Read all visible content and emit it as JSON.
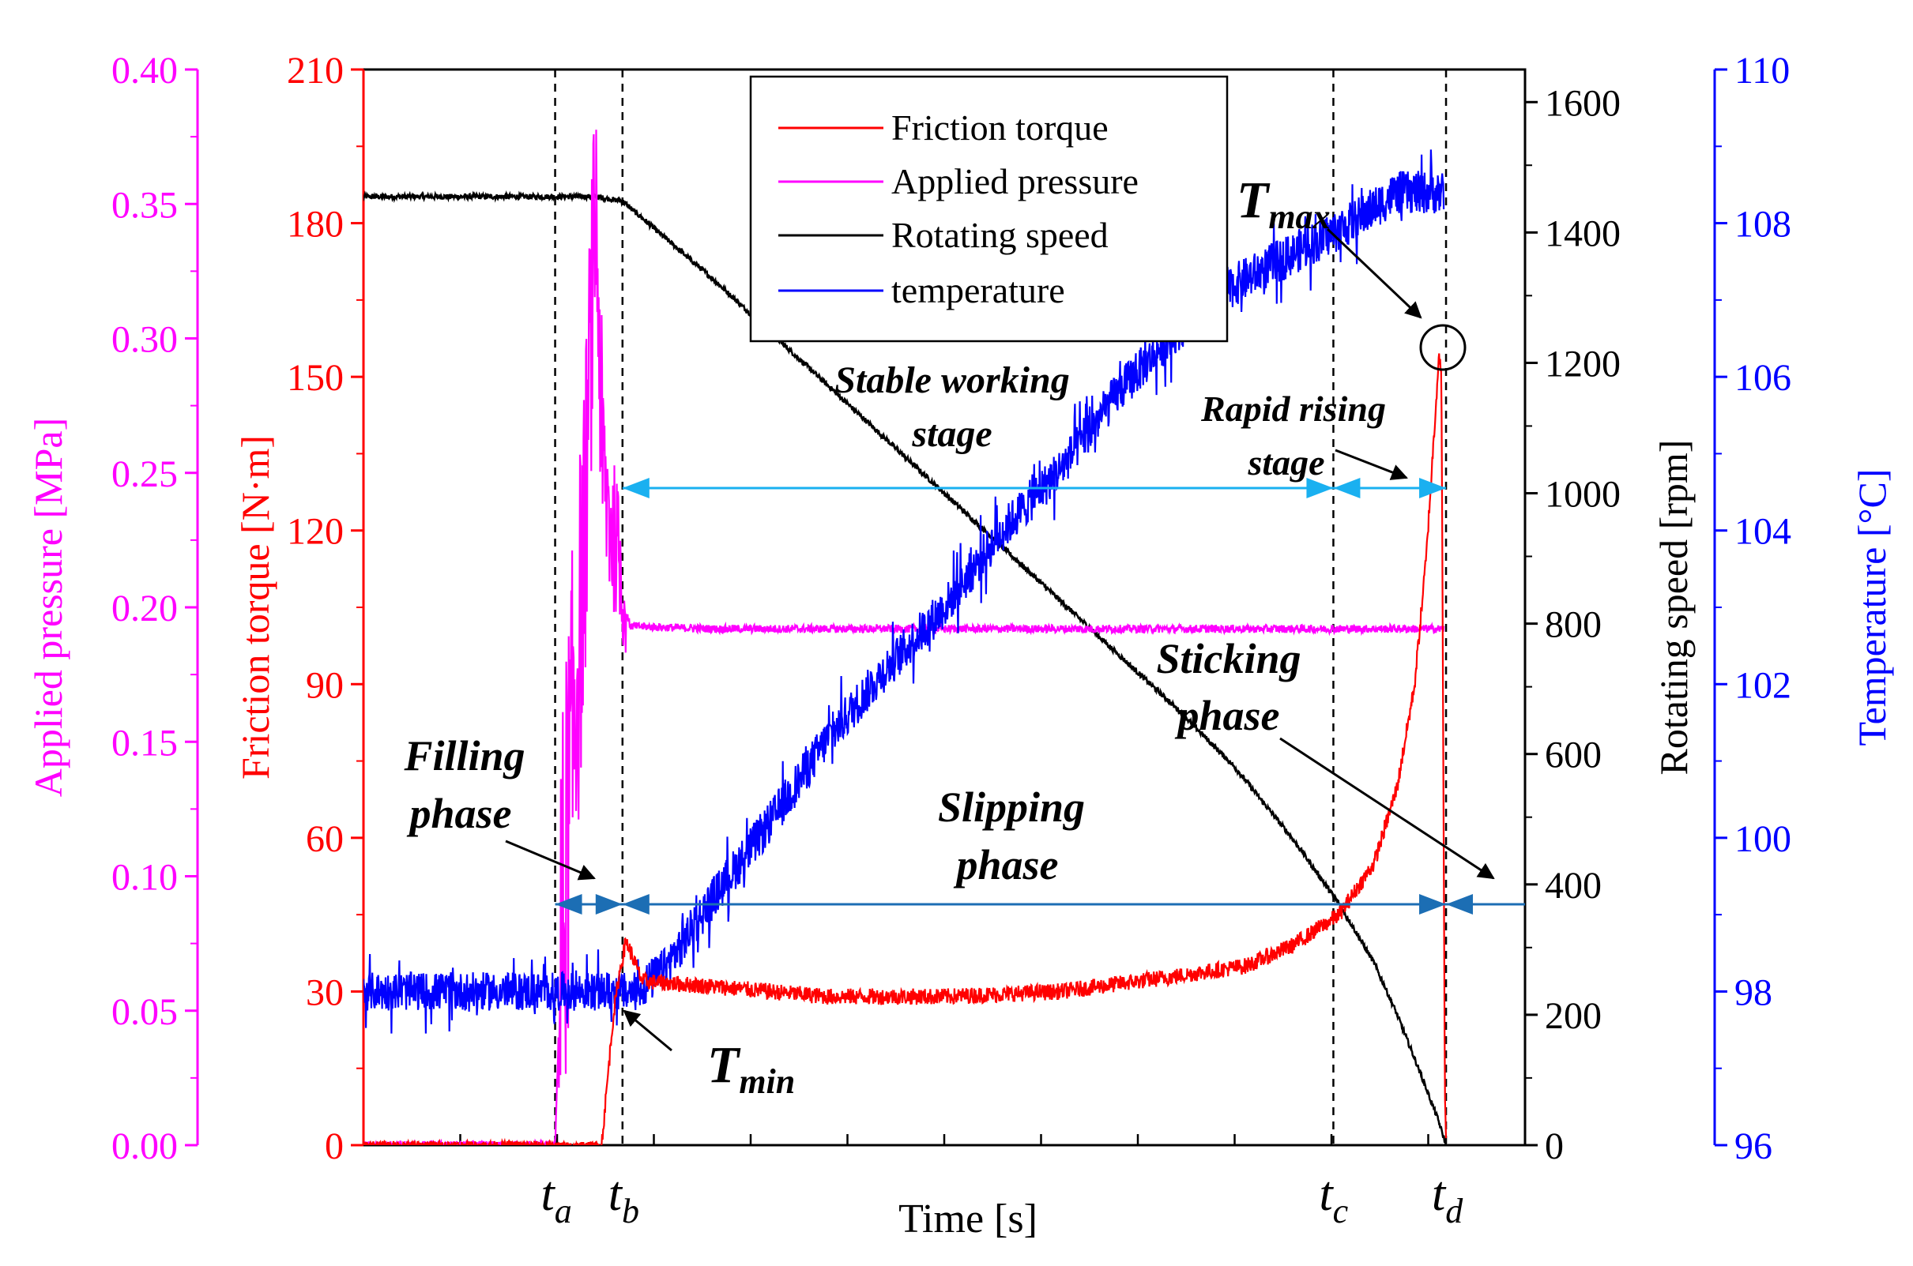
{
  "chart_data": {
    "type": "line",
    "xlabel": "Time [s]",
    "x_range": [
      0,
      100
    ],
    "axes": [
      {
        "id": "pressure",
        "label": "Applied pressure [MPa]",
        "range": [
          0,
          0.4
        ],
        "ticks": [
          "0.00",
          "0.05",
          "0.10",
          "0.15",
          "0.20",
          "0.25",
          "0.30",
          "0.35",
          "0.40"
        ],
        "color": "#ff00ff"
      },
      {
        "id": "torque",
        "label": "Friction torque [N·m]",
        "range": [
          0,
          210
        ],
        "ticks": [
          "0",
          "30",
          "60",
          "90",
          "120",
          "150",
          "180",
          "210"
        ],
        "color": "#ff0000"
      },
      {
        "id": "speed",
        "label": "Rotating speed [rpm]",
        "range": [
          0,
          1650
        ],
        "ticks": [
          "0",
          "200",
          "400",
          "600",
          "800",
          "1000",
          "1200",
          "1400",
          "1600"
        ],
        "color": "#000000"
      },
      {
        "id": "temp",
        "label": "Temperature [°C]",
        "range": [
          96,
          110
        ],
        "ticks": [
          "96",
          "98",
          "100",
          "102",
          "104",
          "106",
          "108",
          "110"
        ],
        "color": "#0000ff"
      }
    ],
    "legend": {
      "position": "top-center",
      "entries": [
        {
          "label": "Friction torque",
          "color": "#ff0000"
        },
        {
          "label": "Applied pressure",
          "color": "#ff00ff"
        },
        {
          "label": "Rotating speed",
          "color": "#000000"
        },
        {
          "label": "temperature",
          "color": "#0000ff"
        }
      ]
    },
    "events": [
      {
        "name": "t",
        "sub": "a",
        "x": 16.5
      },
      {
        "name": "t",
        "sub": "b",
        "x": 22.3
      },
      {
        "name": "t",
        "sub": "c",
        "x": 83.5
      },
      {
        "name": "t",
        "sub": "d",
        "x": 93.2
      }
    ],
    "series": [
      {
        "name": "Friction torque",
        "axis": "torque",
        "points": [
          [
            0,
            0
          ],
          [
            16,
            0
          ],
          [
            20.5,
            0
          ],
          [
            21.5,
            25
          ],
          [
            22,
            33
          ],
          [
            22.6,
            40
          ],
          [
            24,
            32
          ],
          [
            30,
            31
          ],
          [
            40,
            29
          ],
          [
            50,
            29
          ],
          [
            60,
            30
          ],
          [
            70,
            33
          ],
          [
            76,
            35
          ],
          [
            80,
            39
          ],
          [
            84,
            45
          ],
          [
            87,
            55
          ],
          [
            89,
            70
          ],
          [
            90.5,
            90
          ],
          [
            91.5,
            115
          ],
          [
            92.2,
            140
          ],
          [
            92.6,
            155
          ],
          [
            92.8,
            150
          ],
          [
            93.0,
            60
          ],
          [
            93.1,
            10
          ],
          [
            93.2,
            0
          ]
        ]
      },
      {
        "name": "Applied pressure",
        "axis": "pressure",
        "points": [
          [
            0,
            0
          ],
          [
            16.5,
            0
          ],
          [
            17,
            0.07
          ],
          [
            18,
            0.15
          ],
          [
            19,
            0.22
          ],
          [
            19.5,
            0.29
          ],
          [
            20,
            0.35
          ],
          [
            20.6,
            0.25
          ],
          [
            21.3,
            0.23
          ],
          [
            22,
            0.22
          ],
          [
            22.4,
            0.2
          ],
          [
            23,
            0.193
          ],
          [
            30,
            0.192
          ],
          [
            50,
            0.192
          ],
          [
            70,
            0.192
          ],
          [
            80,
            0.192
          ],
          [
            93,
            0.192
          ]
        ]
      },
      {
        "name": "Rotating speed",
        "axis": "speed",
        "points": [
          [
            0,
            1455
          ],
          [
            20,
            1455
          ],
          [
            22.3,
            1448
          ],
          [
            30,
            1330
          ],
          [
            40,
            1165
          ],
          [
            50,
            1000
          ],
          [
            60,
            835
          ],
          [
            70,
            670
          ],
          [
            75,
            580
          ],
          [
            80,
            470
          ],
          [
            84,
            370
          ],
          [
            87,
            280
          ],
          [
            89,
            200
          ],
          [
            91,
            110
          ],
          [
            92.5,
            40
          ],
          [
            93.2,
            0
          ]
        ]
      },
      {
        "name": "temperature",
        "axis": "temp",
        "points": [
          [
            0,
            98
          ],
          [
            23.5,
            98
          ],
          [
            26,
            98.3
          ],
          [
            30,
            99.2
          ],
          [
            35,
            100.2
          ],
          [
            40,
            101.3
          ],
          [
            45,
            102.2
          ],
          [
            50,
            103
          ],
          [
            55,
            104
          ],
          [
            60,
            104.8
          ],
          [
            65,
            105.8
          ],
          [
            70,
            106.6
          ],
          [
            75,
            107.2
          ],
          [
            80,
            107.6
          ],
          [
            85,
            108
          ],
          [
            89,
            108.4
          ],
          [
            93,
            108.4
          ]
        ]
      }
    ],
    "annotations": {
      "t_max": {
        "main": "T",
        "sub": "max"
      },
      "t_min": {
        "main": "T",
        "sub": "min"
      },
      "stable": [
        "Stable working",
        "stage"
      ],
      "rapid": [
        "Rapid rising",
        "stage"
      ],
      "sticking": [
        "Sticking",
        "phase"
      ],
      "filling": [
        "Filling",
        "phase"
      ],
      "slipping": [
        "Slipping",
        "phase"
      ]
    }
  },
  "colors": {
    "arrow_light": "#1ab0f0",
    "arrow_dark": "#1c6eb4"
  }
}
